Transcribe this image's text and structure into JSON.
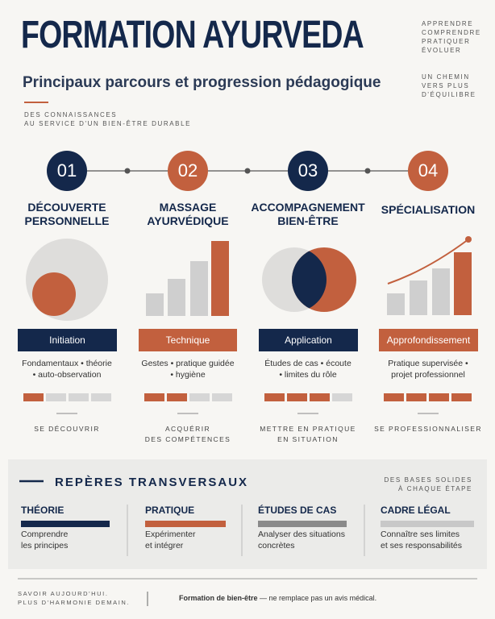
{
  "header": {
    "title": "FORMATION AYURVEDA",
    "subtitle": "Principaux parcours et progression pédagogique",
    "tagline": [
      "DES CONNAISSANCES",
      "AU SERVICE D'UN BIEN-ÊTRE DURABLE"
    ],
    "side_top": [
      "APPRENDRE",
      "COMPRENDRE",
      "PRATIQUER",
      "ÉVOLUER"
    ],
    "side_bottom": [
      "UN CHEMIN",
      "VERS PLUS",
      "D'ÉQUILIBRE"
    ]
  },
  "steps": [
    {
      "number": "01",
      "title": [
        "DÉCOUVERTE",
        "PERSONNELLE"
      ],
      "level": "Initiation",
      "description": [
        "Fondamentaux • théorie",
        "• auto-observation"
      ],
      "outcome": [
        "SE DÉCOUVRIR"
      ]
    },
    {
      "number": "02",
      "title": [
        "MASSAGE",
        "AYURVÉDIQUE"
      ],
      "level": "Technique",
      "description": [
        "Gestes • pratique guidée",
        "• hygiène"
      ],
      "outcome": [
        "ACQUÉRIR",
        "DES COMPÉTENCES"
      ]
    },
    {
      "number": "03",
      "title": [
        "ACCOMPAGNEMENT",
        "BIEN-ÊTRE"
      ],
      "level": "Application",
      "description": [
        "Études de cas • écoute",
        "• limites du rôle"
      ],
      "outcome": [
        "METTRE EN PRATIQUE",
        "EN SITUATION"
      ]
    },
    {
      "number": "04",
      "title": [
        "SPÉCIALISATION"
      ],
      "level": "Approfondissement",
      "description": [
        "Pratique supervisée •",
        "projet professionnel"
      ],
      "outcome": [
        "SE PROFESSIONNALISER"
      ]
    }
  ],
  "transversal": {
    "title": "REPÈRES TRANSVERSAUX",
    "note": [
      "DES BASES SOLIDES",
      "À CHAQUE ÉTAPE"
    ],
    "items": [
      {
        "title": "THÉORIE",
        "text": [
          "Comprendre",
          "les principes"
        ]
      },
      {
        "title": "PRATIQUE",
        "text": [
          "Expérimenter",
          "et intégrer"
        ]
      },
      {
        "title": "ÉTUDES DE CAS",
        "text": [
          "Analyser des situations",
          "concrètes"
        ]
      },
      {
        "title": "CADRE LÉGAL",
        "text": [
          "Connaître ses limites",
          "et ses responsabilités"
        ]
      }
    ]
  },
  "footer": {
    "left": [
      "SAVOIR AUJOURD'HUI.",
      "PLUS D'HARMONIE DEMAIN."
    ],
    "brand": "Formation de bien-être",
    "disclaimer": "— ne remplace pas un avis médical."
  }
}
